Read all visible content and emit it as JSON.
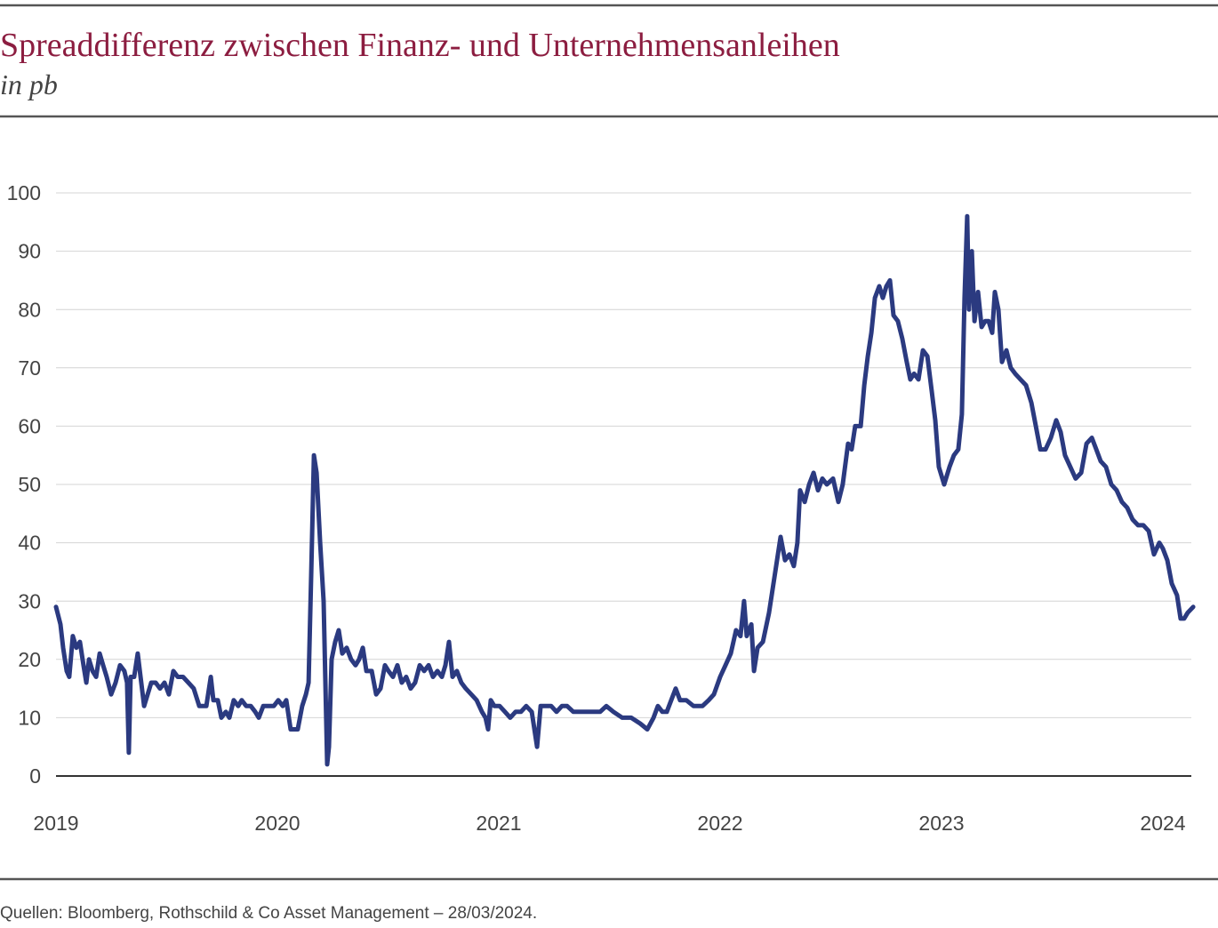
{
  "chart_data": {
    "type": "line",
    "title": "Spreaddifferenz zwischen Finanz- und Unternehmensanleihen",
    "subtitle": "in pb",
    "source": "Quellen: Bloomberg, Rothschild & Co Asset Management – 28/03/2024.",
    "color": "#2b3a80",
    "grid": true,
    "xlim": [
      2019,
      2024.14
    ],
    "xticks": [
      2019,
      2020,
      2021,
      2022,
      2023,
      2024
    ],
    "ylim": [
      0,
      100
    ],
    "yticks": [
      0,
      10,
      20,
      30,
      40,
      50,
      60,
      70,
      80,
      90,
      100
    ],
    "x": [
      2019.0,
      2019.02,
      2019.032,
      2019.048,
      2019.06,
      2019.076,
      2019.092,
      2019.108,
      2019.124,
      2019.137,
      2019.149,
      2019.165,
      2019.181,
      2019.197,
      2019.213,
      2019.229,
      2019.249,
      2019.269,
      2019.289,
      2019.309,
      2019.321,
      2019.329,
      2019.337,
      2019.353,
      2019.369,
      2019.382,
      2019.398,
      2019.414,
      2019.43,
      2019.45,
      2019.47,
      2019.49,
      2019.51,
      2019.53,
      2019.55,
      2019.574,
      2019.598,
      2019.622,
      2019.647,
      2019.679,
      2019.699,
      2019.711,
      2019.731,
      2019.747,
      2019.767,
      2019.783,
      2019.803,
      2019.823,
      2019.839,
      2019.859,
      2019.88,
      2019.9,
      2019.916,
      2019.936,
      2019.96,
      2019.984,
      2020.004,
      2020.024,
      2020.04,
      2020.06,
      2020.092,
      2020.112,
      2020.129,
      2020.141,
      2020.153,
      2020.165,
      2020.177,
      2020.193,
      2020.209,
      2020.225,
      2020.233,
      2020.245,
      2020.261,
      2020.277,
      2020.293,
      2020.313,
      2020.333,
      2020.353,
      2020.369,
      2020.386,
      2020.402,
      2020.426,
      2020.446,
      2020.466,
      2020.486,
      2020.502,
      2020.522,
      2020.542,
      2020.562,
      2020.582,
      2020.602,
      2020.622,
      2020.643,
      2020.663,
      2020.683,
      2020.703,
      2020.723,
      2020.743,
      2020.759,
      2020.775,
      2020.791,
      2020.811,
      2020.831,
      2020.851,
      2020.876,
      2020.9,
      2020.924,
      2020.94,
      2020.952,
      2020.964,
      2020.98,
      2021.004,
      2021.028,
      2021.052,
      2021.076,
      2021.1,
      2021.124,
      2021.149,
      2021.173,
      2021.189,
      2021.213,
      2021.237,
      2021.261,
      2021.285,
      2021.309,
      2021.337,
      2021.378,
      2021.418,
      2021.458,
      2021.486,
      2021.518,
      2021.558,
      2021.598,
      2021.639,
      2021.671,
      2021.699,
      2021.719,
      2021.739,
      2021.759,
      2021.779,
      2021.799,
      2021.819,
      2021.847,
      2021.88,
      2021.92,
      2021.948,
      2021.972,
      2022.0,
      2022.024,
      2022.048,
      2022.072,
      2022.092,
      2022.108,
      2022.12,
      2022.141,
      2022.153,
      2022.169,
      2022.193,
      2022.221,
      2022.249,
      2022.273,
      2022.293,
      2022.313,
      2022.333,
      2022.349,
      2022.361,
      2022.382,
      2022.402,
      2022.422,
      2022.442,
      2022.462,
      2022.482,
      2022.51,
      2022.534,
      2022.554,
      2022.578,
      2022.594,
      2022.61,
      2022.635,
      2022.651,
      2022.667,
      2022.683,
      2022.699,
      2022.719,
      2022.735,
      2022.751,
      2022.767,
      2022.783,
      2022.803,
      2022.823,
      2022.843,
      2022.859,
      2022.876,
      2022.896,
      2022.916,
      2022.936,
      2022.956,
      2022.972,
      2022.988,
      2023.012,
      2023.036,
      2023.056,
      2023.076,
      2023.092,
      2023.104,
      2023.116,
      2023.124,
      2023.137,
      2023.149,
      2023.165,
      2023.181,
      2023.197,
      2023.213,
      2023.229,
      2023.241,
      2023.257,
      2023.273,
      2023.293,
      2023.313,
      2023.333,
      2023.357,
      2023.382,
      2023.406,
      2023.426,
      2023.446,
      2023.47,
      2023.494,
      2023.518,
      2023.538,
      2023.558,
      2023.582,
      2023.606,
      2023.631,
      2023.655,
      2023.679,
      2023.699,
      2023.719,
      2023.743,
      2023.767,
      2023.791,
      2023.815,
      2023.839,
      2023.863,
      2023.888,
      2023.912,
      2023.936,
      2023.96,
      2023.984,
      2024.0,
      2024.02,
      2024.04,
      2024.064,
      2024.08,
      2024.096,
      2024.112,
      2024.137
    ],
    "values": [
      29,
      26,
      22,
      18,
      17,
      24,
      22,
      23,
      19,
      16,
      20,
      18,
      17,
      21,
      19,
      17,
      14,
      16,
      19,
      18,
      16,
      4,
      17,
      17,
      21,
      17,
      12,
      14,
      16,
      16,
      15,
      16,
      14,
      18,
      17,
      17,
      16,
      15,
      12,
      12,
      17,
      13,
      13,
      10,
      11,
      10,
      13,
      12,
      13,
      12,
      12,
      11,
      10,
      12,
      12,
      12,
      13,
      12,
      13,
      8,
      8,
      12,
      14,
      16,
      35,
      55,
      52,
      40,
      30,
      2,
      5,
      20,
      23,
      25,
      21,
      22,
      20,
      19,
      20,
      22,
      18,
      18,
      14,
      15,
      19,
      18,
      17,
      19,
      16,
      17,
      15,
      16,
      19,
      18,
      19,
      17,
      18,
      17,
      19,
      23,
      17,
      18,
      16,
      15,
      14,
      13,
      11,
      10,
      8,
      13,
      12,
      12,
      11,
      10,
      11,
      11,
      12,
      11,
      5,
      12,
      12,
      12,
      11,
      12,
      12,
      11,
      11,
      11,
      11,
      12,
      11,
      10,
      10,
      9,
      8,
      10,
      12,
      11,
      11,
      13,
      15,
      13,
      13,
      12,
      12,
      13,
      14,
      17,
      19,
      21,
      25,
      24,
      30,
      24,
      26,
      18,
      22,
      23,
      28,
      35,
      41,
      37,
      38,
      36,
      40,
      49,
      47,
      50,
      52,
      49,
      51,
      50,
      51,
      47,
      50,
      57,
      56,
      60,
      60,
      67,
      72,
      76,
      82,
      84,
      82,
      84,
      85,
      79,
      78,
      75,
      71,
      68,
      69,
      68,
      73,
      72,
      66,
      61,
      53,
      50,
      53,
      55,
      56,
      62,
      82,
      96,
      80,
      90,
      78,
      83,
      77,
      78,
      78,
      76,
      83,
      80,
      71,
      73,
      70,
      69,
      68,
      67,
      64,
      60,
      56,
      56,
      58,
      61,
      59,
      55,
      53,
      51,
      52,
      57,
      58,
      56,
      54,
      53,
      50,
      49,
      47,
      46,
      44,
      43,
      43,
      42,
      38,
      40,
      39,
      37,
      33,
      31,
      27,
      27,
      28,
      29
    ]
  }
}
